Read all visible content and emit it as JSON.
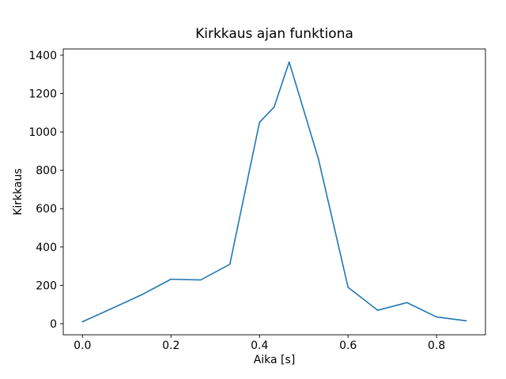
{
  "chart_data": {
    "type": "line",
    "title": "Kirkkaus ajan funktiona",
    "xlabel": "Aika [s]",
    "ylabel": "Kirkkaus",
    "x": [
      0.0,
      0.067,
      0.133,
      0.2,
      0.267,
      0.333,
      0.4,
      0.433,
      0.467,
      0.533,
      0.6,
      0.667,
      0.733,
      0.8,
      0.867
    ],
    "y": [
      10,
      80,
      150,
      232,
      228,
      310,
      1050,
      1130,
      1365,
      860,
      190,
      70,
      110,
      35,
      15
    ],
    "xlim": [
      -0.0434,
      0.9104
    ],
    "ylim": [
      -57.8,
      1432.8
    ],
    "xticks": [
      0.0,
      0.2,
      0.4,
      0.6,
      0.8
    ],
    "yticks": [
      0,
      200,
      400,
      600,
      800,
      1000,
      1200,
      1400
    ],
    "line_color": "#1f77b4",
    "axis_color": "#000000",
    "background_color": "#ffffff",
    "grid": false,
    "legend_position": "none"
  }
}
